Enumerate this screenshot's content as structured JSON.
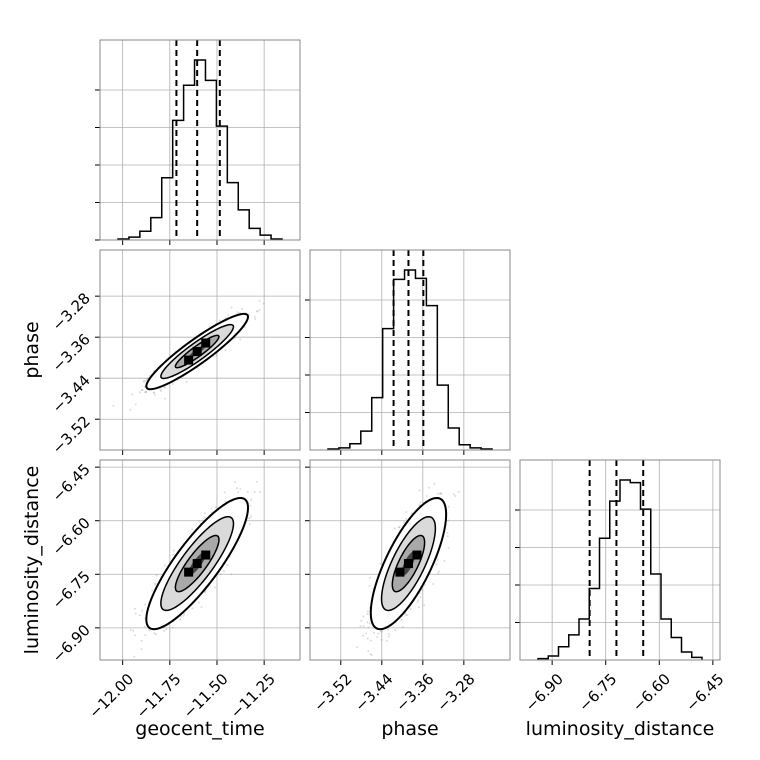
{
  "chart_data": {
    "type": "corner",
    "parameters": [
      {
        "key": "geocent_time",
        "label": "geocent_time",
        "range": [
          -12.12,
          -11.06
        ],
        "ticks": [
          -12.0,
          -11.75,
          -11.5,
          -11.25
        ],
        "tick_labels": [
          "−12.00",
          "−11.75",
          "−11.50",
          "−11.25"
        ],
        "quantiles": [
          -11.715,
          -11.605,
          -11.485
        ],
        "hist_counts": [
          1,
          3,
          9,
          23,
          64,
          123,
          159,
          185,
          164,
          117,
          59,
          31,
          12,
          5,
          1
        ]
      },
      {
        "key": "phase",
        "label": "phase",
        "range": [
          -3.58,
          -3.19
        ],
        "ticks": [
          -3.52,
          -3.44,
          -3.36,
          -3.28
        ],
        "tick_labels": [
          "−3.52",
          "−3.44",
          "−3.36",
          "−3.28"
        ],
        "quantiles": [
          -3.417,
          -3.388,
          -3.359
        ],
        "hist_counts": [
          1,
          2,
          6,
          18,
          50,
          116,
          163,
          172,
          164,
          138,
          62,
          21,
          5,
          2,
          1
        ]
      },
      {
        "key": "luminosity_distance",
        "label": "luminosity_distance",
        "range": [
          -6.99,
          -6.43
        ],
        "ticks": [
          -6.9,
          -6.75,
          -6.6,
          -6.45
        ],
        "tick_labels": [
          "−6.90",
          "−6.75",
          "−6.60",
          "−6.45"
        ],
        "quantiles": [
          -6.795,
          -6.72,
          -6.645
        ],
        "hist_counts": [
          1,
          3,
          10,
          19,
          31,
          54,
          92,
          120,
          136,
          134,
          114,
          65,
          31,
          17,
          6,
          2
        ]
      }
    ],
    "pairs": [
      {
        "x": "geocent_time",
        "y": "phase",
        "mean": [
          -11.605,
          -3.388
        ],
        "sd": [
          0.11,
          0.03
        ],
        "rho": 0.92
      },
      {
        "x": "geocent_time",
        "y": "luminosity_distance",
        "mean": [
          -11.605,
          -6.72
        ],
        "sd": [
          0.11,
          0.075
        ],
        "rho": 0.85
      },
      {
        "x": "phase",
        "y": "luminosity_distance",
        "mean": [
          -3.388,
          -6.72
        ],
        "sd": [
          0.03,
          0.075
        ],
        "rho": 0.75
      }
    ],
    "grid": true,
    "title": "",
    "legend": "none"
  }
}
